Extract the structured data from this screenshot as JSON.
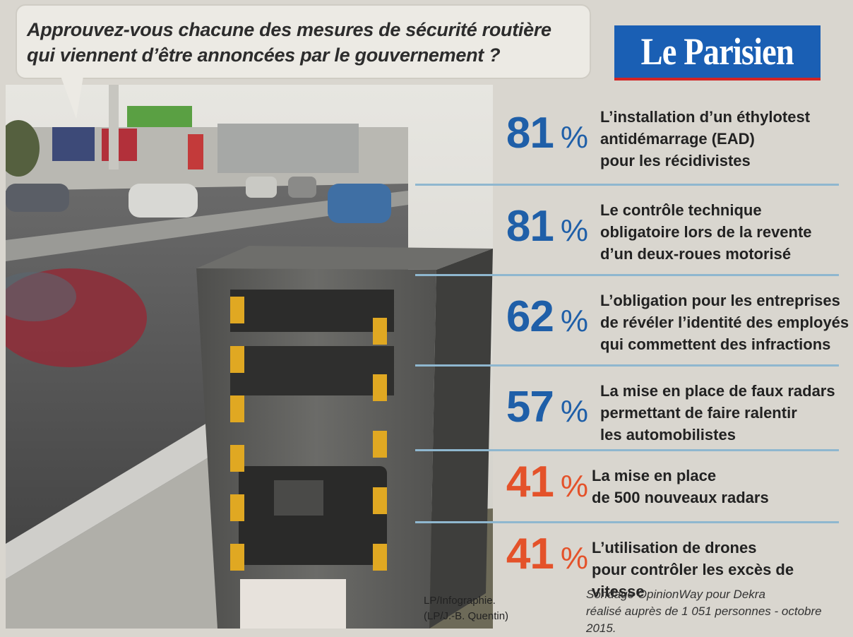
{
  "question": "Approuvez-vous chacune des mesures de sécurité routière qui viennent d’être annoncées par le gouvernement ?",
  "logo": "Le Parisien",
  "colors": {
    "high": "#1f5fa8",
    "low": "#e4522a",
    "separator": "#8fb7cf",
    "logo_bg": "#1a5fb4"
  },
  "chart_data": {
    "type": "bar",
    "unit": "%",
    "categories": [
      "L’installation d’un éthylotest antidémarrage (EAD) pour les récidivistes",
      "Le contrôle technique obligatoire lors de la revente d’un deux-roues motorisé",
      "L’obligation pour les entreprises de révéler l’identité des employés qui commettent des infractions",
      "La mise en place de faux radars permettant de faire ralentir les automobilistes",
      "La mise en place de 500 nouveaux radars",
      "L’utilisation de drones pour contrôler les excès de vitesse"
    ],
    "values": [
      81,
      81,
      62,
      57,
      41,
      41
    ]
  },
  "items": [
    {
      "value": "81",
      "sign": "%",
      "lines": [
        "L’installation d’un éthylotest",
        "antidémarrage (EAD)",
        "pour les récidivistes"
      ]
    },
    {
      "value": "81",
      "sign": "%",
      "lines": [
        "Le contrôle technique",
        "obligatoire lors de la revente",
        "d’un deux-roues motorisé"
      ]
    },
    {
      "value": "62",
      "sign": "%",
      "lines": [
        "L’obligation pour les entreprises",
        "de révéler l’identité des employés",
        "qui commettent des infractions"
      ]
    },
    {
      "value": "57",
      "sign": "%",
      "lines": [
        "La mise en place de faux radars",
        "permettant de faire ralentir",
        "les automobilistes"
      ]
    },
    {
      "value": "41",
      "sign": "%",
      "lines": [
        "La mise en place",
        "de 500 nouveaux radars"
      ]
    },
    {
      "value": "41",
      "sign": "%",
      "lines": [
        "L’utilisation de drones",
        "pour contrôler les excès de vitesse"
      ]
    }
  ],
  "source": [
    "Sondage OpinionWay  pour Dekra",
    "réalisé auprès de 1 051 personnes - octobre 2015."
  ],
  "credit": [
    "LP/Infographie.",
    "(LP/J.-B. Quentin)"
  ]
}
